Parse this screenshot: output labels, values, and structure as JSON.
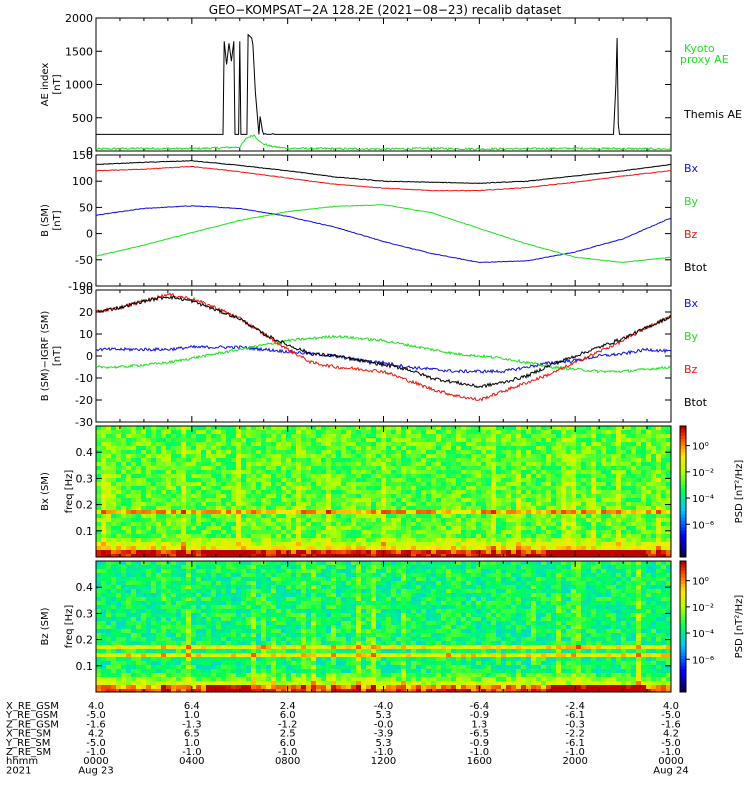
{
  "title": "GEO−KOMPSAT−2A 128.2E (2021−08−23) recalib dataset",
  "colors": {
    "black": "#000000",
    "red": "#e8160c",
    "green": "#1fe01f",
    "blue": "#1010d8"
  },
  "chart_data": [
    {
      "type": "line",
      "name": "ae",
      "ylabel": "AE index",
      "yunit": "[nT]",
      "ylim": [
        0,
        2000
      ],
      "yticks": [
        0,
        500,
        1000,
        1500,
        2000
      ],
      "x_hours": [
        0,
        5.3,
        5.35,
        5.45,
        5.55,
        5.65,
        5.75,
        5.8,
        5.95,
        6.0,
        6.05,
        6.3,
        6.35,
        6.5,
        6.55,
        6.65,
        6.8,
        6.85,
        6.95,
        7.0,
        7.05,
        7.15,
        7.3,
        7.4,
        7.45,
        7.55,
        21.6,
        21.7,
        21.75,
        21.8,
        21.85,
        24
      ],
      "series": [
        {
          "name": "Themis AE",
          "color": "black",
          "y": [
            250,
            250,
            1650,
            1300,
            1620,
            1350,
            1650,
            250,
            250,
            1650,
            250,
            250,
            1750,
            1700,
            1600,
            900,
            250,
            520,
            300,
            250,
            260,
            250,
            250,
            260,
            250,
            250,
            250,
            1000,
            1700,
            400,
            250,
            250
          ]
        },
        {
          "name": "Kyoto proxy AE",
          "color": "green",
          "x_hours": [
            0,
            2,
            4,
            5,
            6,
            6.3,
            6.6,
            6.9,
            7.3,
            8,
            10,
            12,
            14,
            16,
            18,
            20,
            22,
            24
          ],
          "y": [
            30,
            40,
            35,
            45,
            60,
            200,
            240,
            120,
            70,
            40,
            35,
            30,
            40,
            30,
            35,
            40,
            35,
            30
          ]
        }
      ]
    },
    {
      "type": "line",
      "name": "b-sm",
      "ylabel": "B (SM)",
      "yunit": "[nT]",
      "ylim": [
        -100,
        150
      ],
      "yticks": [
        -100,
        -50,
        0,
        50,
        100,
        150
      ],
      "x_hours": [
        0,
        2,
        4,
        6,
        8,
        10,
        12,
        14,
        16,
        18,
        20,
        22,
        24
      ],
      "series": [
        {
          "name": "Bx",
          "color": "blue",
          "y": [
            35,
            48,
            53,
            48,
            33,
            12,
            -15,
            -38,
            -55,
            -52,
            -35,
            -10,
            30
          ]
        },
        {
          "name": "By",
          "color": "green",
          "y": [
            -43,
            -22,
            2,
            25,
            42,
            52,
            55,
            40,
            10,
            -20,
            -45,
            -55,
            -45
          ]
        },
        {
          "name": "Bz",
          "color": "red",
          "y": [
            120,
            123,
            128,
            118,
            106,
            94,
            87,
            82,
            82,
            88,
            98,
            110,
            120
          ]
        },
        {
          "name": "Btot",
          "color": "black",
          "y": [
            132,
            136,
            139,
            130,
            120,
            108,
            100,
            98,
            96,
            100,
            110,
            120,
            132
          ]
        }
      ]
    },
    {
      "type": "line",
      "name": "b-minus-igrf",
      "ylabel": "B (SM)−IGRF (SM)",
      "yunit": "[nT]",
      "ylim": [
        -30,
        30
      ],
      "yticks": [
        -30,
        -20,
        -10,
        0,
        10,
        20,
        30
      ],
      "x_hours": [
        0,
        1,
        2,
        3,
        4,
        5,
        6,
        7,
        8,
        9,
        10,
        11,
        12,
        13,
        14,
        15,
        16,
        17,
        18,
        19,
        20,
        21,
        22,
        23,
        24
      ],
      "series": [
        {
          "name": "Bx",
          "color": "blue",
          "y": [
            3,
            3,
            3,
            3,
            4,
            4,
            4,
            3,
            2,
            1,
            0,
            -2,
            -3,
            -5,
            -6,
            -7,
            -7,
            -7,
            -5,
            -3,
            -2,
            0,
            1,
            3,
            2
          ]
        },
        {
          "name": "By",
          "color": "green",
          "y": [
            -5,
            -5,
            -4,
            -3,
            -1,
            1,
            3,
            5,
            7,
            8,
            9,
            8,
            7,
            5,
            3,
            1,
            0,
            -1,
            -3,
            -5,
            -6,
            -7,
            -7,
            -6,
            -5
          ]
        },
        {
          "name": "Bz",
          "color": "red",
          "y": [
            20,
            22,
            25,
            28,
            26,
            22,
            17,
            10,
            3,
            -3,
            -5,
            -6,
            -7,
            -11,
            -15,
            -18,
            -20,
            -16,
            -12,
            -8,
            -3,
            2,
            7,
            13,
            18
          ]
        },
        {
          "name": "Btot",
          "color": "black",
          "y": [
            20,
            22,
            25,
            27,
            25,
            21,
            17,
            10,
            5,
            1,
            0,
            -2,
            -4,
            -6,
            -10,
            -12,
            -14,
            -12,
            -9,
            -4,
            0,
            4,
            8,
            13,
            18
          ]
        }
      ]
    },
    {
      "type": "heatmap",
      "name": "bx-spectrogram",
      "ylabel": "Bx (SM)",
      "yunit": "freq [Hz]",
      "ylim": [
        0,
        0.5
      ],
      "yticks": [
        0.1,
        0.2,
        0.3,
        0.4
      ],
      "colorbar_label": "PSD [nT²/Hz]",
      "colorbar_ticks": [
        "10⁰",
        "10⁻²",
        "10⁻⁴",
        "10⁻⁶"
      ],
      "features": {
        "line_hz": [
          0.17
        ],
        "bg_log_psd": -2.8
      }
    },
    {
      "type": "heatmap",
      "name": "bz-spectrogram",
      "ylabel": "Bz (SM)",
      "yunit": "freq [Hz]",
      "ylim": [
        0,
        0.5
      ],
      "yticks": [
        0.1,
        0.2,
        0.3,
        0.4
      ],
      "colorbar_label": "PSD [nT²/Hz]",
      "colorbar_ticks": [
        "10⁰",
        "10⁻²",
        "10⁻⁴",
        "10⁻⁶"
      ],
      "features": {
        "line_hz": [
          0.14,
          0.17
        ],
        "bg_log_psd": -3.6
      }
    }
  ],
  "labels": {
    "ae": [
      "Kyoto proxy AE",
      "Themis AE"
    ],
    "b-sm": [
      "Bx",
      "By",
      "Bz",
      "Btot"
    ],
    "b-minus-igrf": [
      "Bx",
      "By",
      "Bz",
      "Btot"
    ]
  },
  "ephemeris": {
    "row_labels": [
      "X_RE_GSM",
      "Y_RE_GSM",
      "Z_RE_GSM",
      "X_RE_SM",
      "Y_RE_SM",
      "Z_RE_SM",
      "hhmm",
      "2021"
    ],
    "columns": [
      [
        "4.0",
        "-5.0",
        "-1.6",
        "4.2",
        "-5.0",
        "-1.0",
        "0000",
        "Aug 23"
      ],
      [
        "6.4",
        "1.0",
        "-1.3",
        "6.5",
        "1.0",
        "-1.0",
        "0400",
        ""
      ],
      [
        "2.4",
        "6.0",
        "-1.2",
        "2.5",
        "6.0",
        "-1.0",
        "0800",
        ""
      ],
      [
        "-4.0",
        "5.3",
        "-0.0",
        "-3.9",
        "5.3",
        "-1.0",
        "1200",
        ""
      ],
      [
        "-6.4",
        "-0.9",
        "1.3",
        "-6.5",
        "-0.9",
        "-1.0",
        "1600",
        ""
      ],
      [
        "-2.4",
        "-6.1",
        "-0.3",
        "-2.2",
        "-6.1",
        "-1.0",
        "2000",
        ""
      ],
      [
        "4.0",
        "-5.0",
        "-1.6",
        "4.2",
        "-5.0",
        "-1.0",
        "0000",
        "Aug 24"
      ]
    ]
  }
}
